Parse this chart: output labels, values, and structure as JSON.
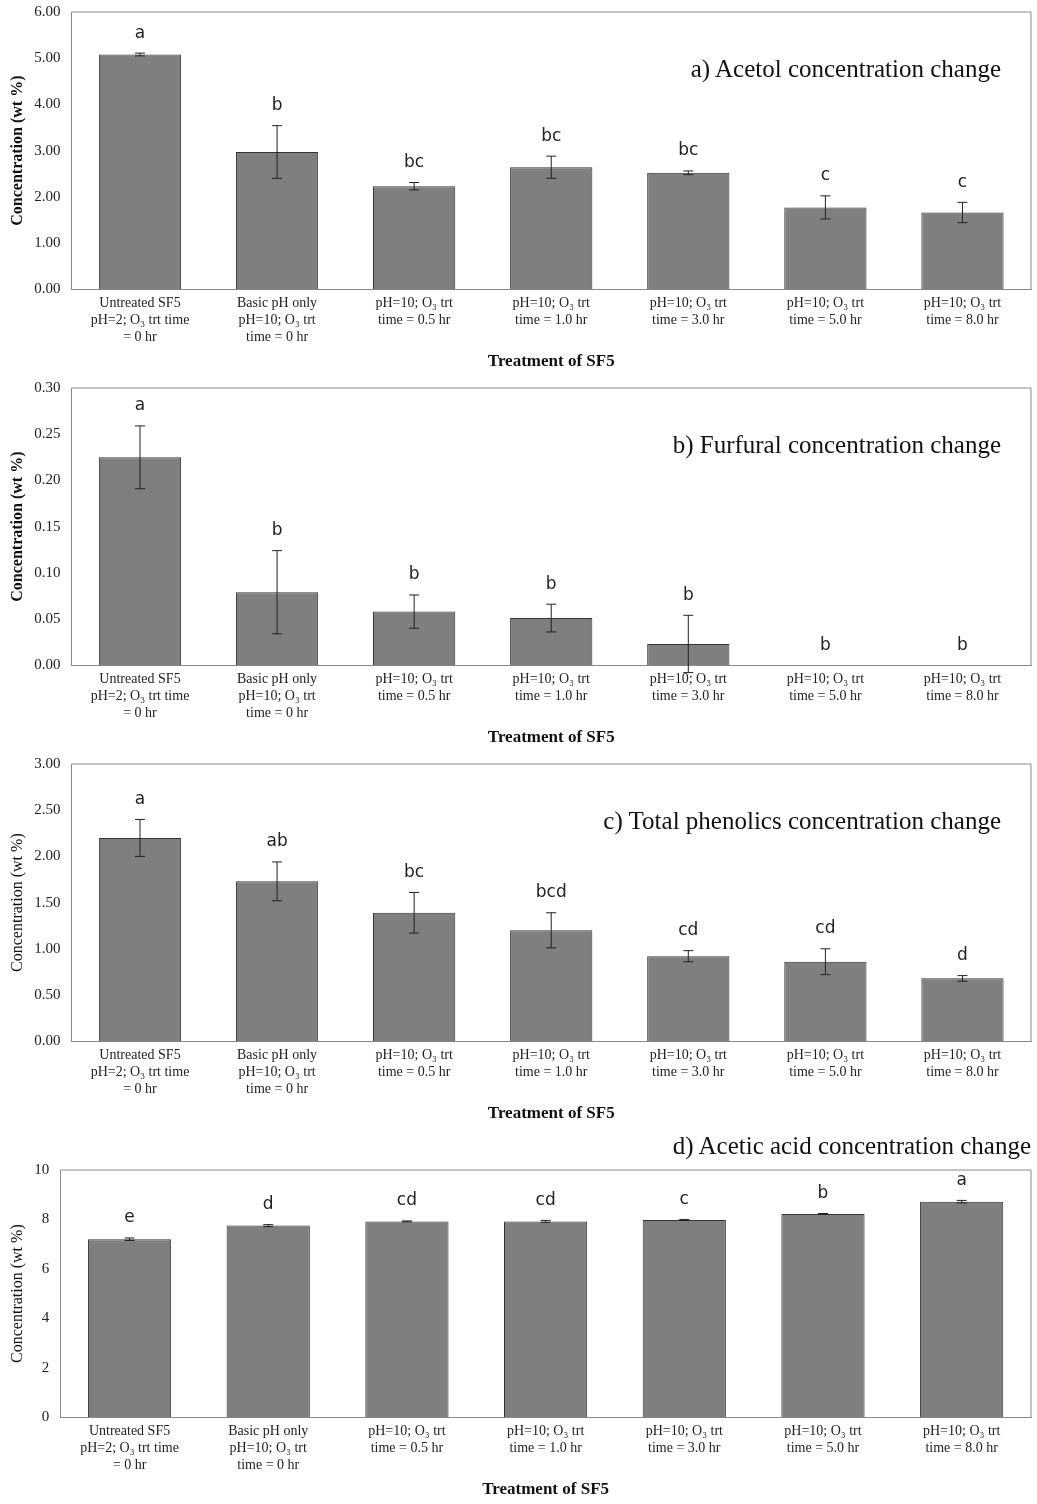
{
  "chart_data": [
    {
      "type": "bar",
      "title": "a) Acetol concentration change",
      "xlabel": "Treatment of SF5",
      "ylabel": "Concentration (wt %)",
      "categories": [
        "Untreated SF5 pH=2; O₃ trt time = 0 hr",
        "Basic pH only pH=10; O₃ trt time = 0 hr",
        "pH=10; O₃ trt time = 0.5 hr",
        "pH=10; O₃ trt time = 1.0 hr",
        "pH=10; O₃ trt time = 3.0 hr",
        "pH=10; O₃ trt time = 5.0 hr",
        "pH=10; O₃ trt time = 8.0 hr"
      ],
      "values": [
        5.08,
        2.97,
        2.23,
        2.64,
        2.52,
        1.77,
        1.66
      ],
      "errors": [
        0.03,
        0.57,
        0.08,
        0.24,
        0.04,
        0.25,
        0.22
      ],
      "color": "#7f7f7f",
      "ylim": [
        0,
        6
      ],
      "yticks": [
        {
          "value": 0,
          "label": "0.00"
        },
        {
          "value": 1,
          "label": "1.00"
        },
        {
          "value": 2,
          "label": "2.00"
        },
        {
          "value": 3,
          "label": "3.00"
        },
        {
          "value": 4,
          "label": "4.00"
        },
        {
          "value": 5,
          "label": "5.00"
        },
        {
          "value": 6,
          "label": "6.00"
        }
      ],
      "grid": false,
      "annotations": [
        "a",
        "b",
        "bc",
        "bc",
        "bc",
        "c",
        "c"
      ]
    },
    {
      "type": "bar",
      "title": "b) Furfural concentration change",
      "xlabel": "Treatment of SF5",
      "ylabel": "Concentration (wt %)",
      "categories": [
        "Untreated SF5 pH=2; O₃ trt time = 0 hr",
        "Basic pH only pH=10; O₃ trt time = 0 hr",
        "pH=10; O₃ trt time = 0.5 hr",
        "pH=10; O₃ trt time = 1.0 hr",
        "pH=10; O₃ trt time = 3.0 hr",
        "pH=10; O₃ trt time = 5.0 hr",
        "pH=10; O₃ trt time = 8.0 hr"
      ],
      "values": [
        0.225,
        0.079,
        0.058,
        0.051,
        0.023,
        0,
        0
      ],
      "errors": [
        0.034,
        0.045,
        0.018,
        0.015,
        0.031,
        null,
        null
      ],
      "color": "#7f7f7f",
      "ylim": [
        0,
        0.3
      ],
      "yticks": [
        {
          "value": 0,
          "label": "0.00"
        },
        {
          "value": 0.05,
          "label": "0.05"
        },
        {
          "value": 0.1,
          "label": "0.10"
        },
        {
          "value": 0.15,
          "label": "0.15"
        },
        {
          "value": 0.2,
          "label": "0.20"
        },
        {
          "value": 0.25,
          "label": "0.25"
        },
        {
          "value": 0.3,
          "label": "0.30"
        }
      ],
      "grid": false,
      "annotations": [
        "a",
        "b",
        "b",
        "b",
        "b",
        "b",
        "b"
      ]
    },
    {
      "type": "bar",
      "title": "c) Total phenolics concentration change",
      "xlabel": "Treatment of SF5",
      "ylabel": "Concentration (wt %)",
      "categories": [
        "Untreated SF5 pH=2; O₃ trt time = 0 hr",
        "Basic pH only pH=10; O₃ trt time = 0 hr",
        "pH=10; O₃ trt time = 0.5 hr",
        "pH=10; O₃ trt time = 1.0 hr",
        "pH=10; O₃ trt time = 3.0 hr",
        "pH=10; O₃ trt time = 5.0 hr",
        "pH=10; O₃ trt time = 8.0 hr"
      ],
      "values": [
        2.2,
        1.73,
        1.39,
        1.2,
        0.92,
        0.86,
        0.68
      ],
      "errors": [
        0.2,
        0.21,
        0.22,
        0.19,
        0.06,
        0.14,
        0.03
      ],
      "color": "#7f7f7f",
      "ylim": [
        0,
        3
      ],
      "yticks": [
        {
          "value": 0,
          "label": "0.00"
        },
        {
          "value": 0.5,
          "label": "0.50"
        },
        {
          "value": 1,
          "label": "1.00"
        },
        {
          "value": 1.5,
          "label": "1.50"
        },
        {
          "value": 2,
          "label": "2.00"
        },
        {
          "value": 2.5,
          "label": "2.50"
        },
        {
          "value": 3,
          "label": "3.00"
        }
      ],
      "grid": false,
      "annotations": [
        "a",
        "ab",
        "bc",
        "bcd",
        "cd",
        "cd",
        "d"
      ]
    },
    {
      "type": "bar",
      "title": "d) Acetic acid concentration change",
      "xlabel": "Treatment of SF5",
      "ylabel": "Concentration (wt %)",
      "categories": [
        "Untreated SF5 pH=2; O₃ trt time = 0 hr",
        "Basic pH only pH=10; O₃ trt time = 0 hr",
        "pH=10; O₃ trt time = 0.5 hr",
        "pH=10; O₃ trt time = 1.0 hr",
        "pH=10; O₃ trt time = 3.0 hr",
        "pH=10; O₃ trt time = 5.0 hr",
        "pH=10; O₃ trt time = 8.0 hr"
      ],
      "values": [
        7.2,
        7.75,
        7.92,
        7.92,
        7.98,
        8.22,
        8.72
      ],
      "errors": [
        0.05,
        0.04,
        0.02,
        0.04,
        0.02,
        0.02,
        0.05
      ],
      "color": "#7f7f7f",
      "ylim": [
        0,
        10
      ],
      "yticks": [
        0,
        2,
        4,
        6,
        8,
        10
      ],
      "grid": false,
      "annotations": [
        "e",
        "d",
        "cd",
        "cd",
        "c",
        "b",
        "a"
      ]
    }
  ]
}
